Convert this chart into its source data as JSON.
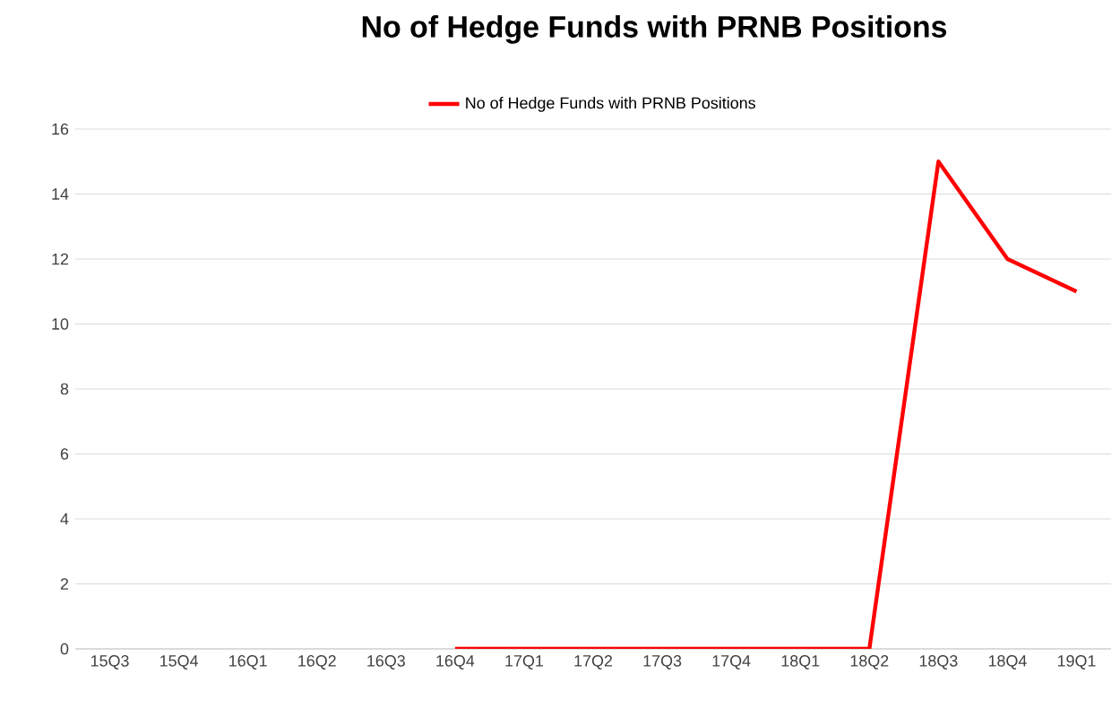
{
  "chart_data": {
    "type": "line",
    "title": "No of Hedge Funds with PRNB Positions",
    "categories": [
      "15Q3",
      "15Q4",
      "16Q1",
      "16Q2",
      "16Q3",
      "16Q4",
      "17Q1",
      "17Q2",
      "17Q3",
      "17Q4",
      "18Q1",
      "18Q2",
      "18Q3",
      "18Q4",
      "19Q1"
    ],
    "series": [
      {
        "name": "No of Hedge Funds with PRNB Positions",
        "color": "#ff0000",
        "values": [
          null,
          null,
          null,
          null,
          null,
          0,
          0,
          0,
          0,
          0,
          0,
          0,
          15,
          12,
          11
        ]
      }
    ],
    "ylim": [
      0,
      16
    ],
    "yticks": [
      0,
      2,
      4,
      6,
      8,
      10,
      12,
      14,
      16
    ],
    "grid": "y",
    "legend": "top"
  }
}
